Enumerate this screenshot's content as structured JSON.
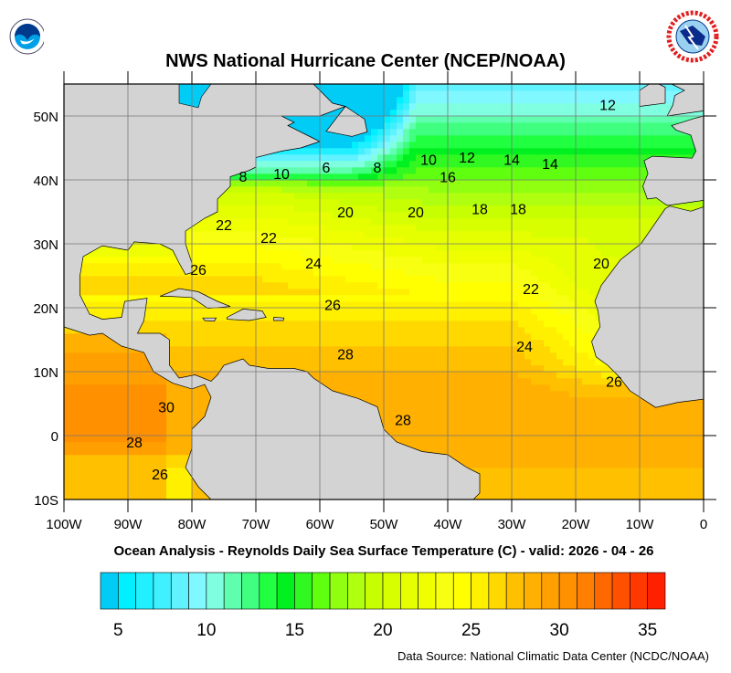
{
  "header": {
    "title": "NWS National Hurricane Center (NCEP/NOAA)"
  },
  "logos": {
    "left": "NOAA",
    "right": "NATIONAL WEATHER SERVICE"
  },
  "map": {
    "subtitle": "Ocean Analysis - Reynolds Daily Sea Surface Temperature (C) - valid: 2026 - 04 - 26",
    "lon_range": [
      -100,
      0
    ],
    "lat_range": [
      -10,
      55
    ],
    "lon_ticks": [
      "100W",
      "90W",
      "80W",
      "70W",
      "60W",
      "50W",
      "40W",
      "30W",
      "20W",
      "10W",
      "0"
    ],
    "lat_ticks": [
      "10S",
      "0",
      "10N",
      "20N",
      "30N",
      "40N",
      "50N"
    ],
    "land_color": "#d3d3d3",
    "contour_labels": [
      {
        "v": "12",
        "lon": -15,
        "lat": 51.8
      },
      {
        "v": "10",
        "lon": -43,
        "lat": 43.2
      },
      {
        "v": "12",
        "lon": -37,
        "lat": 43.6
      },
      {
        "v": "14",
        "lon": -30,
        "lat": 43.2
      },
      {
        "v": "14",
        "lon": -24,
        "lat": 42.6
      },
      {
        "v": "8",
        "lon": -72,
        "lat": 40.6
      },
      {
        "v": "10",
        "lon": -66,
        "lat": 41
      },
      {
        "v": "6",
        "lon": -59,
        "lat": 42
      },
      {
        "v": "8",
        "lon": -51,
        "lat": 42
      },
      {
        "v": "16",
        "lon": -40,
        "lat": 40.5
      },
      {
        "v": "22",
        "lon": -75,
        "lat": 33
      },
      {
        "v": "20",
        "lon": -56,
        "lat": 35
      },
      {
        "v": "20",
        "lon": -45,
        "lat": 35
      },
      {
        "v": "18",
        "lon": -35,
        "lat": 35.5
      },
      {
        "v": "18",
        "lon": -29,
        "lat": 35.5
      },
      {
        "v": "22",
        "lon": -68,
        "lat": 31
      },
      {
        "v": "24",
        "lon": -61,
        "lat": 27
      },
      {
        "v": "26",
        "lon": -79,
        "lat": 26
      },
      {
        "v": "20",
        "lon": -16,
        "lat": 27
      },
      {
        "v": "22",
        "lon": -27,
        "lat": 23
      },
      {
        "v": "26",
        "lon": -58,
        "lat": 20.5
      },
      {
        "v": "28",
        "lon": -56,
        "lat": 12.8
      },
      {
        "v": "24",
        "lon": -28,
        "lat": 14
      },
      {
        "v": "26",
        "lon": -14,
        "lat": 8.5
      },
      {
        "v": "30",
        "lon": -84,
        "lat": 4.5
      },
      {
        "v": "28",
        "lon": -89,
        "lat": -1
      },
      {
        "v": "28",
        "lon": -47,
        "lat": 2.5
      },
      {
        "v": "26",
        "lon": -85,
        "lat": -6
      }
    ]
  },
  "colorbar": {
    "min": 4,
    "max": 36,
    "labels": [
      "5",
      "10",
      "15",
      "20",
      "25",
      "30",
      "35"
    ],
    "colors": [
      "#00ccf5",
      "#00f0ff",
      "#20f0ff",
      "#40f0ff",
      "#60f2ff",
      "#80f8ff",
      "#80ffe0",
      "#60ffb0",
      "#40ff80",
      "#20ff40",
      "#00f020",
      "#30f820",
      "#60ff10",
      "#90ff10",
      "#b0ff10",
      "#c8ff00",
      "#d8ff00",
      "#e6ff00",
      "#f0ff00",
      "#f8ff10",
      "#ffff00",
      "#fff000",
      "#ffd800",
      "#ffc000",
      "#ffb000",
      "#ffa000",
      "#ff9000",
      "#ff8000",
      "#ff6800",
      "#ff5000",
      "#ff3800",
      "#ff2000"
    ]
  },
  "footer": {
    "source": "Data Source: National Climatic Data Center (NCDC/NOAA)"
  }
}
